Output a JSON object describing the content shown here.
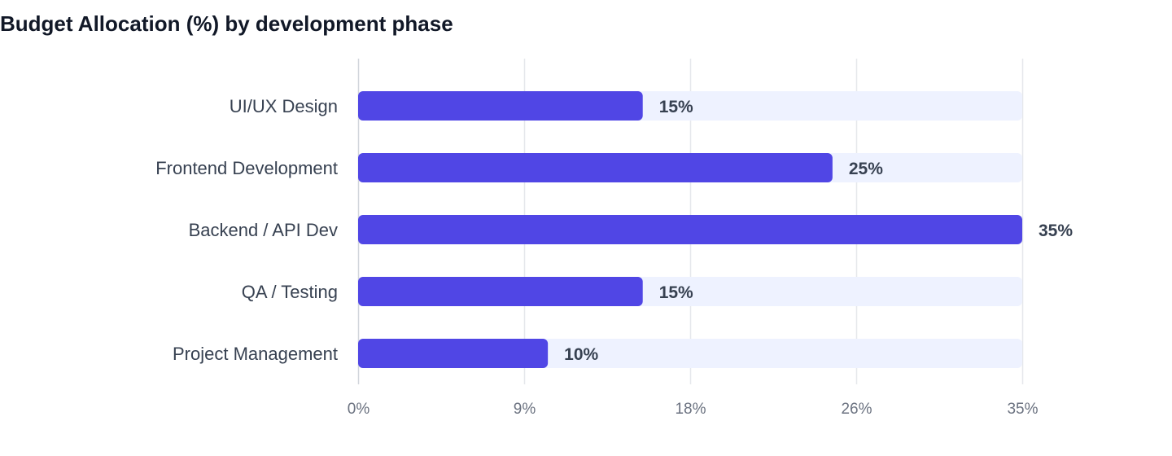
{
  "chart_data": {
    "type": "bar",
    "orientation": "horizontal",
    "title": "Budget Allocation (%) by development phase",
    "xlabel": "",
    "ylabel": "",
    "categories": [
      "UI/UX Design",
      "Frontend Development",
      "Backend / API Dev",
      "QA / Testing",
      "Project Management"
    ],
    "values": [
      15,
      25,
      35,
      15,
      10
    ],
    "value_labels": [
      "15%",
      "25%",
      "35%",
      "15%",
      "10%"
    ],
    "xlim": [
      0,
      35
    ],
    "tick_values": [
      0,
      8.75,
      17.5,
      26.25,
      35
    ],
    "tick_labels": [
      "0%",
      "9%",
      "18%",
      "26%",
      "35%"
    ],
    "grid": true,
    "legend": "none",
    "colors": {
      "bar": "#5046e5",
      "track": "#eef2ff",
      "grid": "#e5e7eb",
      "axis": "#d1d5db"
    }
  }
}
